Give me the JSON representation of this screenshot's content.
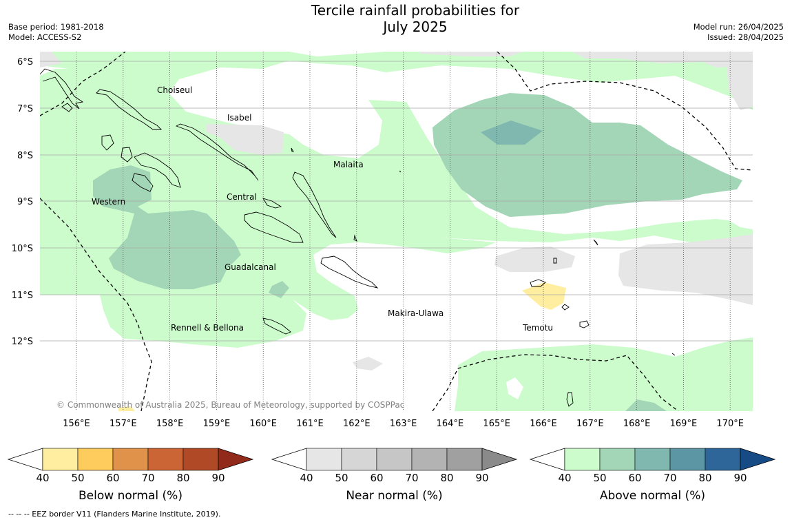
{
  "title": {
    "line1": "Tercile rainfall probabilities for",
    "line2": "July 2025"
  },
  "meta_left": {
    "base_period": "Base period: 1981-2018",
    "model": "Model: ACCESS-S2"
  },
  "meta_right": {
    "model_run": "Model run: 26/04/2025",
    "issued": "Issued: 28/04/2025"
  },
  "map": {
    "lat_labels": [
      "6°S",
      "7°S",
      "8°S",
      "9°S",
      "10°S",
      "11°S",
      "12°S"
    ],
    "lon_labels": [
      "156°E",
      "157°E",
      "158°E",
      "159°E",
      "160°E",
      "161°E",
      "162°E",
      "163°E",
      "164°E",
      "165°E",
      "166°E",
      "167°E",
      "168°E",
      "169°E",
      "170°E"
    ],
    "province_labels": [
      {
        "id": "choiseul",
        "text": "Choiseul"
      },
      {
        "id": "isabel",
        "text": "Isabel"
      },
      {
        "id": "malaita",
        "text": "Malaita"
      },
      {
        "id": "western",
        "text": "Western"
      },
      {
        "id": "central",
        "text": "Central"
      },
      {
        "id": "guadalcanal",
        "text": "Guadalcanal"
      },
      {
        "id": "makira",
        "text": "Makira-Ulawa"
      },
      {
        "id": "rennell",
        "text": "Rennell & Bellona"
      },
      {
        "id": "temotu",
        "text": "Temotu"
      }
    ],
    "copyright": "© Commonwealth of Australia 2025, Bureau of Meteorology, supported by COSPPac"
  },
  "colorbars": [
    {
      "id": "below",
      "title": "Below normal (%)",
      "ticks": [
        "40",
        "50",
        "60",
        "70",
        "80",
        "90"
      ],
      "colors": [
        "#ffeda0",
        "#fecc5c",
        "#e0914a",
        "#cc6535",
        "#b04a26",
        "#922a1c"
      ]
    },
    {
      "id": "near",
      "title": "Near normal (%)",
      "ticks": [
        "40",
        "50",
        "60",
        "70",
        "80",
        "90"
      ],
      "colors": [
        "#e6e6e6",
        "#d6d6d6",
        "#c6c6c6",
        "#b3b3b3",
        "#a0a0a0",
        "#8a8a8a"
      ]
    },
    {
      "id": "above",
      "title": "Above normal (%)",
      "ticks": [
        "40",
        "50",
        "60",
        "70",
        "80",
        "90"
      ],
      "colors": [
        "#ccfccc",
        "#a3d6b6",
        "#80b8b0",
        "#5c95a3",
        "#2e6699",
        "#174b85"
      ]
    }
  ],
  "eez_note": "--  --  -- EEZ border V11 (Flanders Marine Institute, 2019)."
}
